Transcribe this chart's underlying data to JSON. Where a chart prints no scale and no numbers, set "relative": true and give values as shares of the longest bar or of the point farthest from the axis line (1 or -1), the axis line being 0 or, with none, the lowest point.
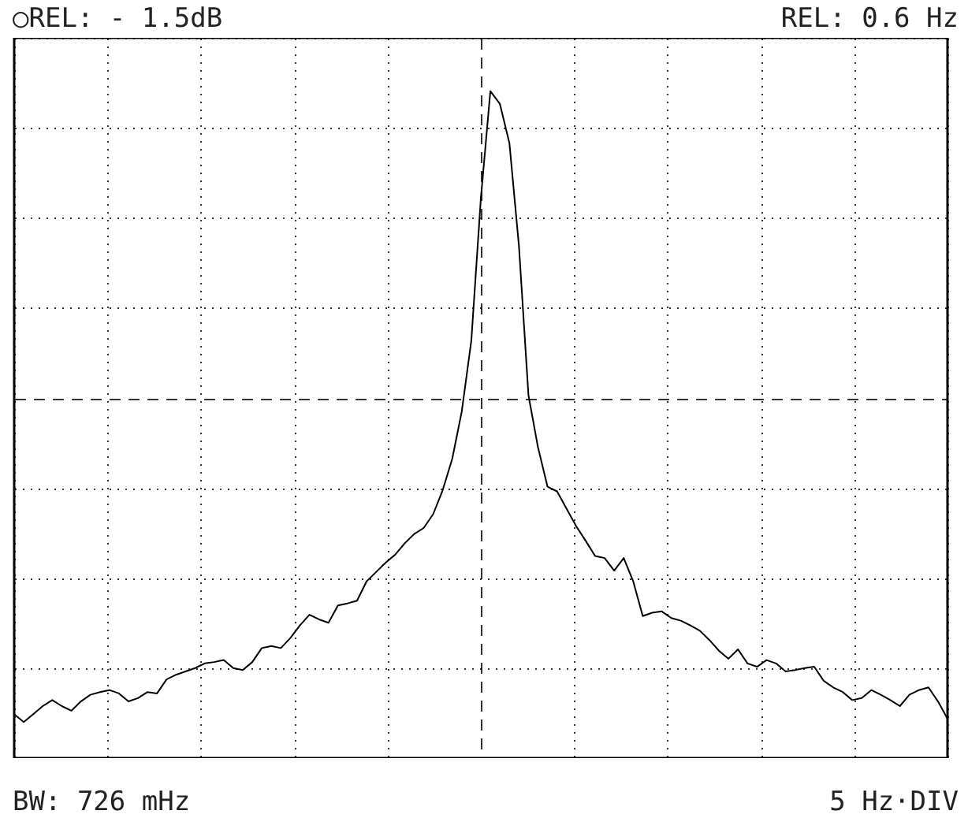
{
  "chart_data": {
    "type": "line",
    "relative": true,
    "grid": true,
    "color": "#000000",
    "categories": [
      null,
      null,
      null,
      null,
      null,
      null,
      null,
      null,
      null,
      null,
      null,
      null,
      null,
      null,
      null,
      null,
      null,
      null,
      null,
      null,
      null,
      null,
      null,
      null,
      null,
      null,
      null,
      null,
      null,
      null,
      null,
      null,
      null,
      null,
      null,
      null,
      null,
      null,
      null,
      null,
      null,
      null,
      null,
      null,
      null,
      null,
      null,
      null,
      null,
      null,
      null,
      null,
      null,
      null,
      null,
      null,
      null,
      null,
      null,
      null,
      null,
      null,
      null,
      null,
      null,
      null,
      null,
      null,
      null,
      null,
      null,
      null,
      null,
      null,
      null,
      null,
      null,
      null,
      null,
      null,
      null,
      null,
      null,
      null,
      null,
      null,
      null,
      null,
      null,
      null,
      null,
      null,
      null,
      null,
      null,
      null,
      null,
      null,
      null
    ],
    "values": [
      0.066,
      0.054,
      0.066,
      0.078,
      0.087,
      0.078,
      0.071,
      0.085,
      0.095,
      0.099,
      0.102,
      0.097,
      0.085,
      0.09,
      0.099,
      0.097,
      0.118,
      0.125,
      0.13,
      0.135,
      0.142,
      0.144,
      0.147,
      0.135,
      0.132,
      0.144,
      0.165,
      0.168,
      0.165,
      0.18,
      0.199,
      0.215,
      0.208,
      0.203,
      0.229,
      0.232,
      0.236,
      0.265,
      0.279,
      0.293,
      0.305,
      0.322,
      0.336,
      0.345,
      0.366,
      0.402,
      0.449,
      0.52,
      0.626,
      0.839,
      1,
      0.981,
      0.922,
      0.768,
      0.544,
      0.466,
      0.407,
      0.4,
      0.374,
      0.348,
      0.326,
      0.303,
      0.3,
      0.281,
      0.3,
      0.265,
      0.213,
      0.218,
      0.22,
      0.21,
      0.206,
      0.199,
      0.191,
      0.177,
      0.161,
      0.149,
      0.163,
      0.142,
      0.137,
      0.147,
      0.142,
      0.13,
      0.132,
      0.135,
      0.137,
      0.116,
      0.106,
      0.099,
      0.087,
      0.09,
      0.102,
      0.095,
      0.087,
      0.078,
      0.095,
      0.102,
      0.106,
      0.085,
      0.059
    ],
    "annotations": [
      "○REL: - 1.5dB",
      "REL: 0.6 Hz",
      "BW: 726 mHz",
      "5 Hz·DIV"
    ]
  }
}
